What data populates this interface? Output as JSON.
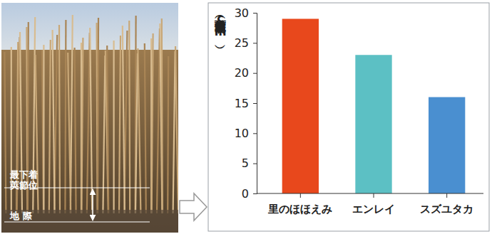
{
  "chart_data": {
    "type": "bar",
    "categories": [
      "里のほほえみ",
      "エンレイ",
      "スズユタカ"
    ],
    "values": [
      29,
      23,
      16
    ],
    "colors": [
      "#e8481c",
      "#5cc0c4",
      "#4a8fd0"
    ],
    "ylabel": "最下着莢節位高（cm）",
    "ylim": [
      0,
      30
    ],
    "yticks": [
      0,
      5,
      10,
      15,
      20,
      25,
      30
    ],
    "annotations": [
      "最下着莢節位",
      "地 際"
    ]
  }
}
